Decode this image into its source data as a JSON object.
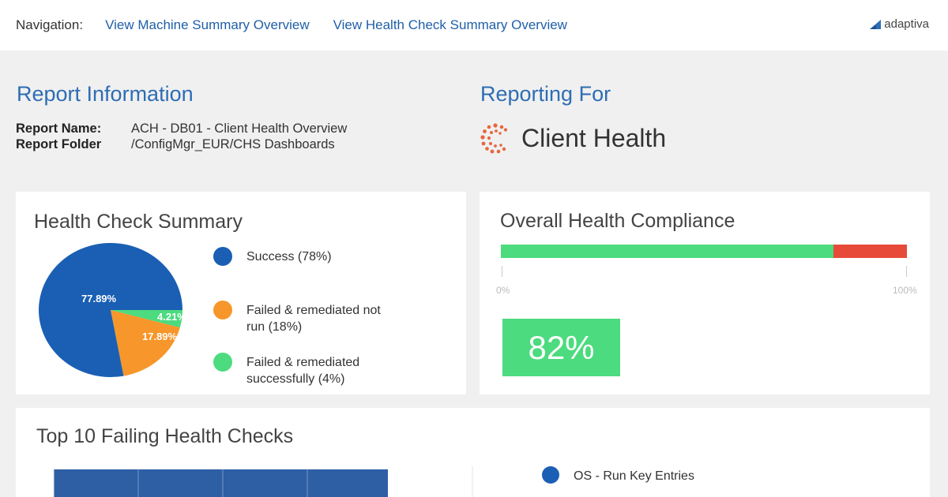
{
  "navigation": {
    "label": "Navigation:",
    "links": [
      "View Machine Summary Overview",
      "View Health Check Summary Overview"
    ]
  },
  "brand": {
    "name": "adaptiva"
  },
  "report_info": {
    "title": "Report Information",
    "name_key": "Report Name:",
    "name_value": "ACH - DB01 - Client Health Overview",
    "folder_key": "Report Folder",
    "folder_value": "/ConfigMgr_EUR/CHS Dashboards"
  },
  "reporting_for": {
    "title": "Reporting For",
    "product": "Client Health"
  },
  "health_check_summary": {
    "title": "Health Check Summary",
    "legend": [
      {
        "label": "Success (78%)",
        "color": "#1a5fb4"
      },
      {
        "label": "Failed & remediated not run (18%)",
        "color": "#f7962a"
      },
      {
        "label": "Failed & remediated successfully (4%)",
        "color": "#4cdb7e"
      }
    ]
  },
  "overall_compliance": {
    "title": "Overall Health Compliance",
    "tick_min": "0%",
    "tick_max": "100%",
    "value_label": "82%",
    "green_color": "#4cdb7e",
    "red_color": "#e84a3a"
  },
  "top_failing": {
    "title": "Top 10 Failing Health Checks",
    "legend": [
      {
        "label": "OS - Run Key Entries",
        "color": "#1a5fb4"
      }
    ]
  },
  "chart_data": [
    {
      "type": "pie",
      "title": "Health Check Summary",
      "categories": [
        "Success",
        "Failed & remediated not run",
        "Failed & remediated successfully"
      ],
      "values": [
        77.89,
        17.89,
        4.21
      ],
      "labels": [
        "77.89%",
        "17.89%",
        "4.21%"
      ],
      "colors": [
        "#1a5fb4",
        "#f7962a",
        "#4cdb7e"
      ]
    },
    {
      "type": "bar",
      "title": "Overall Health Compliance",
      "values": [
        82,
        18
      ],
      "xlim": [
        0,
        100
      ],
      "tick_labels": [
        "0%",
        "100%"
      ],
      "colors": [
        "#4cdb7e",
        "#e84a3a"
      ]
    }
  ]
}
